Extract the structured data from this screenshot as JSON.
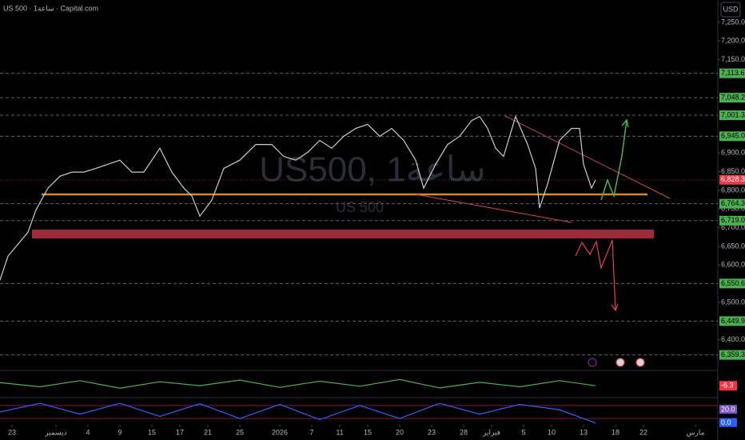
{
  "header": {
    "symbol_line": "US 500 · 1ساعة · Capital.com",
    "currency": "USD",
    "watermark": "US500, 1ساعة",
    "watermark_sub": "US 500"
  },
  "chart_data": [
    {
      "type": "line",
      "color": "#c8cbd2",
      "x": [
        0,
        2,
        7,
        9,
        12,
        15,
        18,
        21,
        24,
        27,
        30,
        33,
        36,
        38,
        40,
        43,
        46,
        48,
        50,
        53,
        56,
        60,
        64,
        68,
        71,
        74,
        77,
        80,
        83,
        86,
        89,
        92,
        95,
        98,
        101,
        104,
        106,
        109,
        112,
        115,
        118,
        120,
        122,
        124,
        126,
        129,
        132,
        134,
        135,
        137,
        140,
        143,
        145,
        146,
        148,
        149
      ],
      "values": [
        6560,
        6624,
        6688,
        6748,
        6806,
        6838,
        6849,
        6849,
        6859,
        6870,
        6881,
        6849,
        6849,
        6881,
        6913,
        6849,
        6806,
        6785,
        6731,
        6774,
        6859,
        6881,
        6923,
        6923,
        6891,
        6881,
        6902,
        6934,
        6913,
        6945,
        6966,
        6977,
        6945,
        6966,
        6934,
        6881,
        6806,
        6870,
        6923,
        6945,
        6987,
        6998,
        6966,
        6913,
        6891,
        6998,
        6923,
        6859,
        6753,
        6817,
        6934,
        6966,
        6966,
        6870,
        6806,
        6828.3
      ],
      "xlim": [
        0,
        180
      ],
      "xticks": [
        {
          "value": 3,
          "label": "23"
        },
        {
          "value": 14,
          "label": "ديسمبر"
        },
        {
          "value": 22,
          "label": "4"
        },
        {
          "value": 30,
          "label": "9"
        },
        {
          "value": 38,
          "label": "15"
        },
        {
          "value": 45,
          "label": "17"
        },
        {
          "value": 52,
          "label": "21"
        },
        {
          "value": 60,
          "label": "25"
        },
        {
          "value": 70,
          "label": "2026"
        },
        {
          "value": 78,
          "label": "7"
        },
        {
          "value": 85,
          "label": "11"
        },
        {
          "value": 92,
          "label": "15"
        },
        {
          "value": 100,
          "label": "20"
        },
        {
          "value": 108,
          "label": "23"
        },
        {
          "value": 116,
          "label": "28"
        },
        {
          "value": 123,
          "label": "فبراير"
        },
        {
          "value": 131,
          "label": "5"
        },
        {
          "value": 138,
          "label": "10"
        },
        {
          "value": 146,
          "label": "13"
        },
        {
          "value": 154,
          "label": "18"
        },
        {
          "value": 161,
          "label": "22"
        },
        {
          "value": 174,
          "label": "مارس"
        }
      ],
      "ylim": [
        6320,
        7310
      ],
      "yticks": [
        {
          "value": 7250,
          "label": "7,250.0"
        },
        {
          "value": 7200,
          "label": "7,200.0"
        },
        {
          "value": 7150,
          "label": "7,150.0"
        },
        {
          "value": 6900,
          "label": "6,900.0"
        },
        {
          "value": 6850,
          "label": "6,850.0"
        },
        {
          "value": 6800,
          "label": "6,800.0"
        },
        {
          "value": 6750,
          "label": "6,750.0"
        },
        {
          "value": 6700,
          "label": "6,700.0"
        },
        {
          "value": 6650,
          "label": "6,650.0"
        },
        {
          "value": 6600,
          "label": "6,600.0"
        },
        {
          "value": 6500,
          "label": "6,500.0"
        },
        {
          "value": 6400,
          "label": "6,400.0"
        }
      ],
      "levels": {
        "values": [
          7113.6,
          7048.2,
          7001.3,
          6945.0,
          6764.3,
          6719.0,
          6550.6,
          6449.9,
          6359.3
        ],
        "value_labels": [
          "7,113.6",
          "7,048.2",
          "7,001.3",
          "6,945.0",
          "6,764.3",
          "6,719.0",
          "6,550.6",
          "6,449.9",
          "6,359.3"
        ],
        "color": "#4caf50"
      },
      "last_price": {
        "value": 6828.3,
        "label": "6,828.3",
        "color": "#f23645"
      }
    },
    {
      "type": "line",
      "color": "#4caf50",
      "x": [
        0,
        10,
        20,
        30,
        40,
        50,
        60,
        70,
        80,
        90,
        100,
        110,
        120,
        130,
        140,
        149
      ],
      "values": [
        5,
        -10,
        12,
        -15,
        8,
        -6,
        14,
        -12,
        10,
        -8,
        16,
        -14,
        6,
        -10,
        12,
        -6.3
      ],
      "ylim": [
        -40,
        40
      ],
      "last_value": -6.3,
      "last_color": "#f23645"
    },
    {
      "type": "line",
      "color": "#2962ff",
      "x": [
        0,
        10,
        20,
        30,
        40,
        50,
        60,
        70,
        80,
        90,
        100,
        110,
        120,
        130,
        140,
        149
      ],
      "values": [
        50,
        90,
        40,
        90,
        30,
        88,
        20,
        85,
        15,
        80,
        20,
        90,
        40,
        85,
        60,
        0
      ],
      "ylim": [
        -5,
        105
      ],
      "bands": [
        80,
        20
      ],
      "last_values": [
        {
          "value": 20,
          "label": "20.0"
        },
        {
          "value": 0,
          "label": "0.0"
        }
      ]
    }
  ]
}
